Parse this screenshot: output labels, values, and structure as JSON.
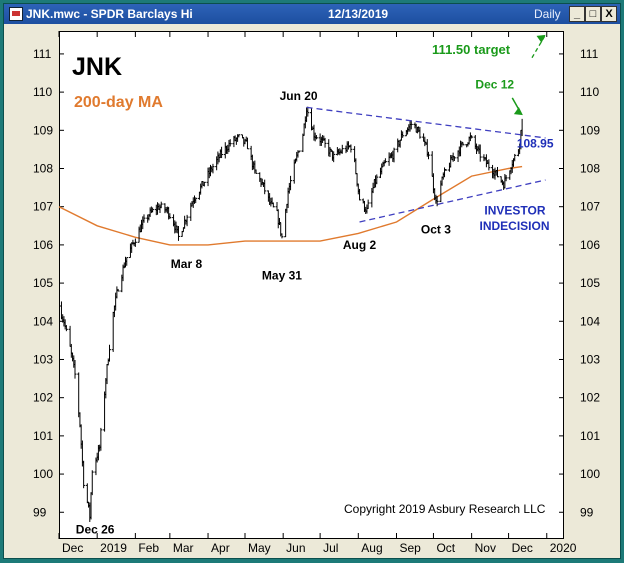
{
  "window": {
    "title": "JNK.mwc - SPDR Barclays Hi",
    "date": "12/13/2019",
    "period": "Daily",
    "buttons": [
      "_",
      "□",
      "X"
    ]
  },
  "chart_data": {
    "type": "candlestick",
    "title": "JNK",
    "subtitle": "200-day MA",
    "copyright": "Copyright 2019 Asbury Research LLC",
    "ylim": [
      98.3,
      111.6
    ],
    "yticks": [
      99,
      100,
      101,
      102,
      103,
      104,
      105,
      106,
      107,
      108,
      109,
      110,
      111
    ],
    "xticks": [
      {
        "label": "Dec",
        "x": "2018-12"
      },
      {
        "label": "2019",
        "x": "2019-01"
      },
      {
        "label": "Feb",
        "x": "2019-02"
      },
      {
        "label": "Mar",
        "x": "2019-03"
      },
      {
        "label": "Apr",
        "x": "2019-04"
      },
      {
        "label": "May",
        "x": "2019-05"
      },
      {
        "label": "Jun",
        "x": "2019-06"
      },
      {
        "label": "Jul",
        "x": "2019-07"
      },
      {
        "label": "Aug",
        "x": "2019-08"
      },
      {
        "label": "Sep",
        "x": "2019-09"
      },
      {
        "label": "Oct",
        "x": "2019-10"
      },
      {
        "label": "Nov",
        "x": "2019-11"
      },
      {
        "label": "Dec",
        "x": "2019-12"
      },
      {
        "label": "2020",
        "x": "2020-01"
      }
    ],
    "price_path": [
      [
        "2018-12-01",
        104.4
      ],
      [
        "2018-12-05",
        104.0
      ],
      [
        "2018-12-10",
        103.3
      ],
      [
        "2018-12-14",
        102.6
      ],
      [
        "2018-12-18",
        101.3
      ],
      [
        "2018-12-21",
        99.8
      ],
      [
        "2018-12-26",
        98.9
      ],
      [
        "2018-12-28",
        100.1
      ],
      [
        "2019-01-03",
        100.7
      ],
      [
        "2019-01-08",
        102.5
      ],
      [
        "2019-01-14",
        104.2
      ],
      [
        "2019-01-18",
        104.9
      ],
      [
        "2019-01-24",
        105.6
      ],
      [
        "2019-01-31",
        106.1
      ],
      [
        "2019-02-06",
        106.5
      ],
      [
        "2019-02-12",
        106.8
      ],
      [
        "2019-02-20",
        107.0
      ],
      [
        "2019-02-27",
        106.9
      ],
      [
        "2019-03-04",
        106.6
      ],
      [
        "2019-03-08",
        106.2
      ],
      [
        "2019-03-14",
        106.7
      ],
      [
        "2019-03-20",
        107.2
      ],
      [
        "2019-03-28",
        107.6
      ],
      [
        "2019-04-04",
        108.0
      ],
      [
        "2019-04-12",
        108.4
      ],
      [
        "2019-04-20",
        108.7
      ],
      [
        "2019-04-26",
        108.8
      ],
      [
        "2019-05-03",
        108.6
      ],
      [
        "2019-05-09",
        107.9
      ],
      [
        "2019-05-15",
        107.6
      ],
      [
        "2019-05-21",
        107.1
      ],
      [
        "2019-05-27",
        106.8
      ],
      [
        "2019-05-31",
        106.2
      ],
      [
        "2019-06-05",
        107.4
      ],
      [
        "2019-06-12",
        108.3
      ],
      [
        "2019-06-17",
        108.9
      ],
      [
        "2019-06-20",
        109.6
      ],
      [
        "2019-06-26",
        108.9
      ],
      [
        "2019-07-03",
        108.7
      ],
      [
        "2019-07-12",
        108.3
      ],
      [
        "2019-07-20",
        108.5
      ],
      [
        "2019-07-27",
        108.6
      ],
      [
        "2019-08-02",
        107.2
      ],
      [
        "2019-08-08",
        106.9
      ],
      [
        "2019-08-14",
        107.6
      ],
      [
        "2019-08-22",
        108.1
      ],
      [
        "2019-08-30",
        108.4
      ],
      [
        "2019-09-06",
        108.9
      ],
      [
        "2019-09-14",
        109.2
      ],
      [
        "2019-09-20",
        108.9
      ],
      [
        "2019-09-27",
        108.4
      ],
      [
        "2019-10-03",
        107.1
      ],
      [
        "2019-10-09",
        107.8
      ],
      [
        "2019-10-17",
        108.3
      ],
      [
        "2019-10-24",
        108.6
      ],
      [
        "2019-10-31",
        108.8
      ],
      [
        "2019-11-07",
        108.4
      ],
      [
        "2019-11-14",
        108.1
      ],
      [
        "2019-11-20",
        107.9
      ],
      [
        "2019-11-27",
        107.6
      ],
      [
        "2019-12-03",
        108.1
      ],
      [
        "2019-12-09",
        108.5
      ],
      [
        "2019-12-12",
        109.2
      ]
    ],
    "ma_200": [
      [
        "2018-12-01",
        107.0
      ],
      [
        "2019-01-01",
        106.5
      ],
      [
        "2019-02-01",
        106.2
      ],
      [
        "2019-03-01",
        106.0
      ],
      [
        "2019-04-01",
        106.0
      ],
      [
        "2019-05-01",
        106.1
      ],
      [
        "2019-06-01",
        106.1
      ],
      [
        "2019-07-01",
        106.1
      ],
      [
        "2019-08-01",
        106.3
      ],
      [
        "2019-09-01",
        106.6
      ],
      [
        "2019-10-01",
        107.2
      ],
      [
        "2019-11-01",
        107.8
      ],
      [
        "2019-12-01",
        108.0
      ],
      [
        "2019-12-12",
        108.05
      ]
    ],
    "trendlines": [
      {
        "name": "upper",
        "from": [
          "2019-06-20",
          109.6
        ],
        "to": [
          "2019-12-31",
          108.8
        ]
      },
      {
        "name": "lower",
        "from": [
          "2019-08-02",
          106.6
        ],
        "to": [
          "2019-12-31",
          107.7
        ]
      },
      {
        "name": "target-arrow",
        "from": [
          "2019-12-20",
          110.9
        ],
        "to": [
          "2019-12-31",
          111.5
        ]
      }
    ],
    "annotations": [
      {
        "text": "Jun 20",
        "x": "2019-06-20",
        "y": 109.9
      },
      {
        "text": "Dec 12",
        "x": "2019-12-12",
        "y": 110.2
      },
      {
        "text": "111.50 target",
        "x": "2019-12-12",
        "y": 111.1
      },
      {
        "text": "108.95",
        "x": "2019-12-31",
        "y": 108.65
      },
      {
        "text": "Mar 8",
        "x": "2019-03-08",
        "y": 105.5
      },
      {
        "text": "May 31",
        "x": "2019-05-31",
        "y": 105.2
      },
      {
        "text": "Aug 2",
        "x": "2019-08-02",
        "y": 106.0
      },
      {
        "text": "Oct 3",
        "x": "2019-10-03",
        "y": 106.4
      },
      {
        "text": "INVESTOR",
        "x": "2019-12-31",
        "y": 106.9
      },
      {
        "text": "INDECISION",
        "x": "2019-12-31",
        "y": 106.5
      },
      {
        "text": "Dec 26",
        "x": "2018-12-26",
        "y": 98.55
      }
    ],
    "colors": {
      "price": "#000000",
      "ma": "#e07a2e",
      "subtitle": "#e07a2e",
      "trend": "#3f3fc0",
      "target": "#1a9a1a",
      "annotation_blue": "#1f2fb8"
    }
  }
}
